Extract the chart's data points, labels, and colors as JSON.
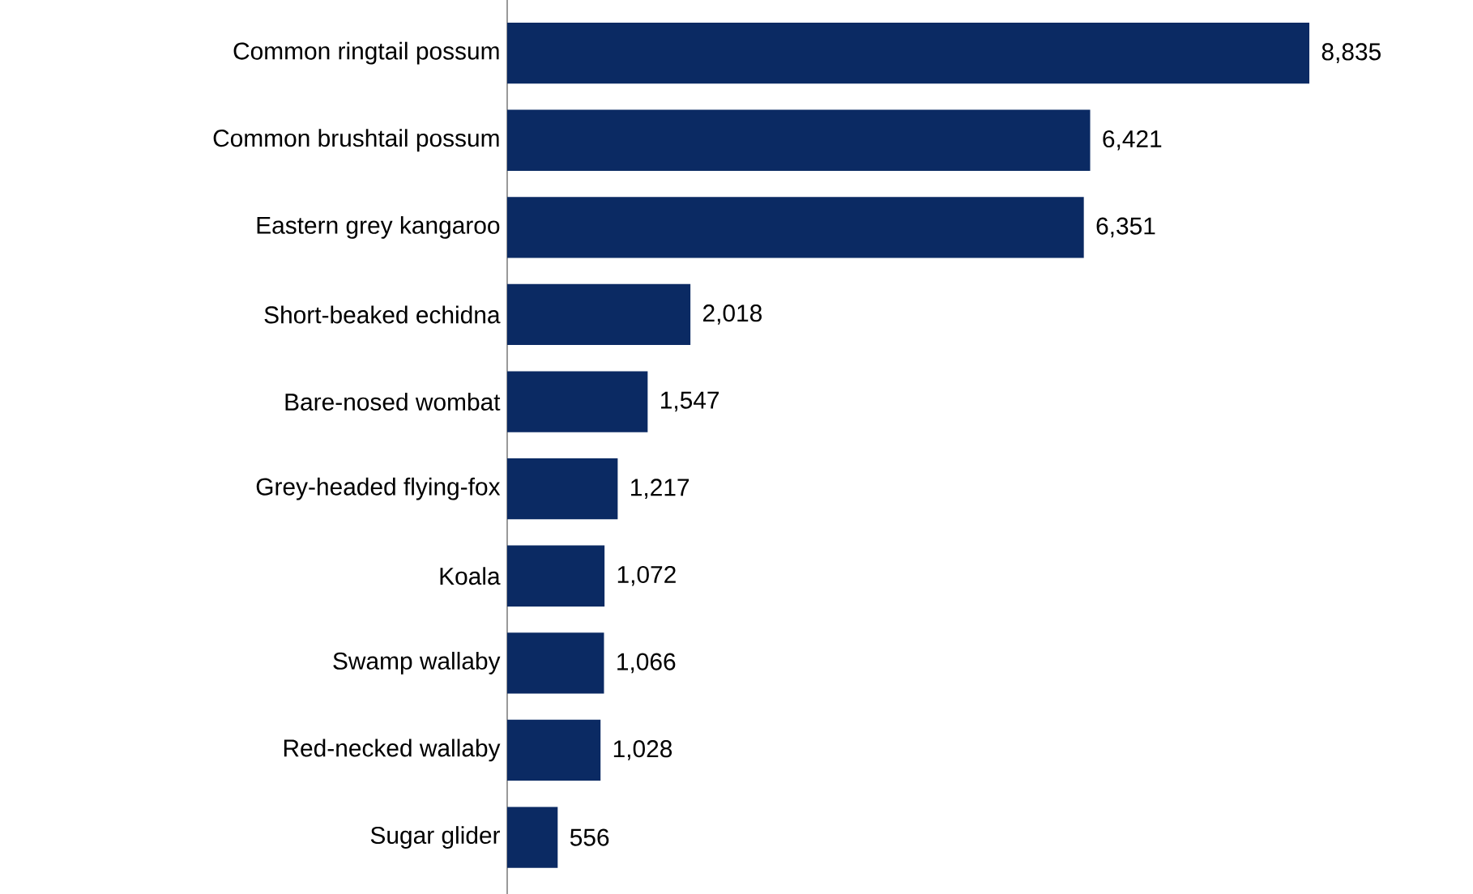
{
  "chart_data": {
    "type": "bar",
    "orientation": "horizontal",
    "categories": [
      "Common ringtail possum",
      "Common brushtail possum",
      "Eastern grey kangaroo",
      "Short-beaked echidna",
      "Bare-nosed wombat",
      "Grey-headed flying-fox",
      "Koala",
      "Swamp wallaby",
      "Red-necked wallaby",
      "Sugar glider"
    ],
    "values": [
      8835,
      6421,
      6351,
      2018,
      1547,
      1217,
      1072,
      1066,
      1028,
      556
    ],
    "value_labels": [
      "8,835",
      "6,421",
      "6,351",
      "2,018",
      "1,547",
      "1,217",
      "1,072",
      "1,066",
      "1,028",
      "556"
    ],
    "color": "#0b2a63"
  }
}
